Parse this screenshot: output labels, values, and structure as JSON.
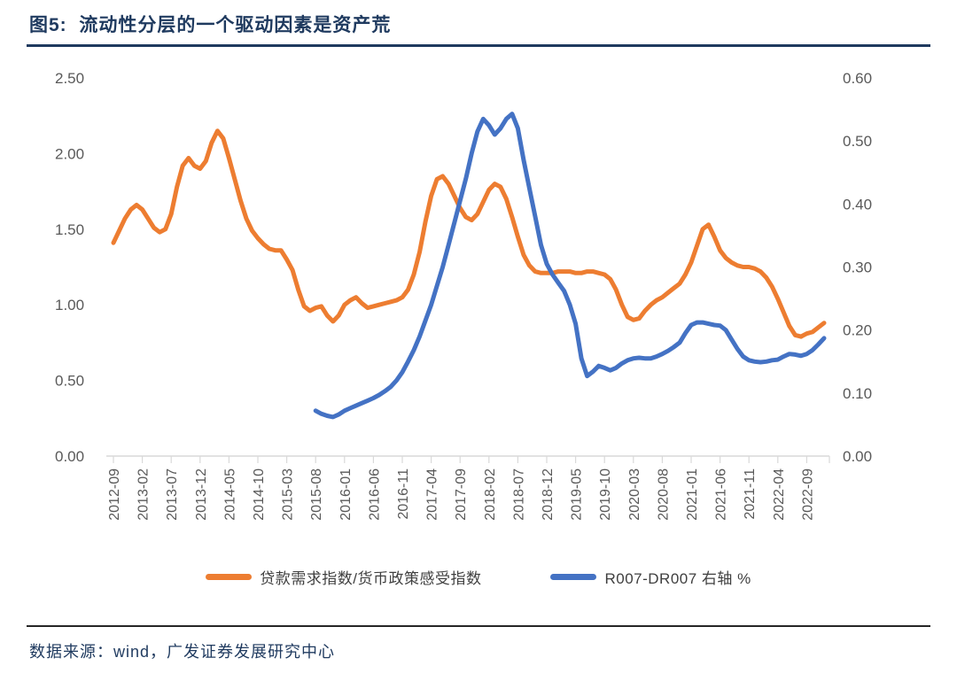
{
  "header": {
    "title": "图5:  流动性分层的一个驱动因素是资产荒"
  },
  "footer": {
    "source": "数据来源：wind，广发证券发展研究中心"
  },
  "colors": {
    "orange": "#ED7D31",
    "blue": "#4472C4",
    "title_navy": "#1F3A5F",
    "axis_line": "#D9D9D9",
    "axis_text": "#595959"
  },
  "legend": [
    {
      "label": "贷款需求指数/货币政策感受指数",
      "color_key": "orange"
    },
    {
      "label": "R007-DR007  右轴 %",
      "color_key": "blue"
    }
  ],
  "chart_data": {
    "type": "line",
    "grid": "off",
    "legend_position": "bottom",
    "left_axis": {
      "min": 0,
      "max": 2.5,
      "ticks": [
        "0.00",
        "0.50",
        "1.00",
        "1.50",
        "2.00",
        "2.50"
      ]
    },
    "right_axis": {
      "min": 0,
      "max": 0.6,
      "ticks": [
        "0.00",
        "0.10",
        "0.20",
        "0.30",
        "0.40",
        "0.50",
        "0.60"
      ]
    },
    "x_tick_labels": [
      "2012-09",
      "2013-02",
      "2013-07",
      "2013-12",
      "2014-05",
      "2014-10",
      "2015-03",
      "2015-08",
      "2016-01",
      "2016-06",
      "2016-11",
      "2017-04",
      "2017-09",
      "2018-02",
      "2018-07",
      "2018-12",
      "2019-05",
      "2019-10",
      "2020-03",
      "2020-08",
      "2021-01",
      "2021-06",
      "2021-11",
      "2022-04",
      "2022-09"
    ],
    "x_origin_month": "2012-09",
    "series": [
      {
        "name": "贷款需求指数/货币政策感受指数",
        "axis": "left",
        "color": "#ED7D31",
        "start_month": "2012-09",
        "values": [
          1.41,
          1.49,
          1.57,
          1.63,
          1.66,
          1.63,
          1.57,
          1.51,
          1.48,
          1.5,
          1.6,
          1.78,
          1.92,
          1.97,
          1.92,
          1.9,
          1.95,
          2.07,
          2.15,
          2.1,
          1.97,
          1.83,
          1.69,
          1.57,
          1.49,
          1.44,
          1.4,
          1.37,
          1.36,
          1.36,
          1.3,
          1.23,
          1.1,
          0.99,
          0.96,
          0.98,
          0.99,
          0.93,
          0.89,
          0.93,
          1.0,
          1.03,
          1.05,
          1.01,
          0.98,
          0.99,
          1.0,
          1.01,
          1.02,
          1.03,
          1.05,
          1.1,
          1.2,
          1.35,
          1.55,
          1.72,
          1.83,
          1.85,
          1.8,
          1.72,
          1.64,
          1.58,
          1.56,
          1.6,
          1.68,
          1.76,
          1.8,
          1.78,
          1.7,
          1.58,
          1.45,
          1.33,
          1.26,
          1.22,
          1.21,
          1.21,
          1.21,
          1.22,
          1.22,
          1.22,
          1.21,
          1.21,
          1.22,
          1.22,
          1.21,
          1.2,
          1.17,
          1.1,
          1.0,
          0.92,
          0.9,
          0.91,
          0.96,
          1.0,
          1.03,
          1.05,
          1.08,
          1.11,
          1.14,
          1.2,
          1.28,
          1.39,
          1.5,
          1.53,
          1.45,
          1.36,
          1.31,
          1.28,
          1.26,
          1.25,
          1.25,
          1.24,
          1.22,
          1.18,
          1.12,
          1.04,
          0.95,
          0.86,
          0.8,
          0.79,
          0.81,
          0.82,
          0.85,
          0.88
        ]
      },
      {
        "name": "R007-DR007 右轴 %",
        "axis": "right",
        "color": "#4472C4",
        "start_month": "2015-08",
        "values": [
          0.072,
          0.067,
          0.064,
          0.062,
          0.066,
          0.072,
          0.076,
          0.08,
          0.084,
          0.088,
          0.092,
          0.097,
          0.103,
          0.11,
          0.12,
          0.133,
          0.15,
          0.168,
          0.19,
          0.215,
          0.24,
          0.27,
          0.3,
          0.335,
          0.37,
          0.405,
          0.44,
          0.48,
          0.515,
          0.535,
          0.525,
          0.51,
          0.52,
          0.535,
          0.543,
          0.52,
          0.47,
          0.425,
          0.38,
          0.335,
          0.305,
          0.288,
          0.275,
          0.262,
          0.24,
          0.21,
          0.155,
          0.127,
          0.134,
          0.143,
          0.14,
          0.136,
          0.14,
          0.147,
          0.152,
          0.155,
          0.156,
          0.155,
          0.155,
          0.158,
          0.162,
          0.167,
          0.173,
          0.18,
          0.195,
          0.208,
          0.212,
          0.212,
          0.21,
          0.208,
          0.207,
          0.2,
          0.185,
          0.17,
          0.158,
          0.152,
          0.15,
          0.149,
          0.15,
          0.152,
          0.153,
          0.158,
          0.162,
          0.161,
          0.159,
          0.162,
          0.168,
          0.177,
          0.187
        ]
      }
    ]
  }
}
